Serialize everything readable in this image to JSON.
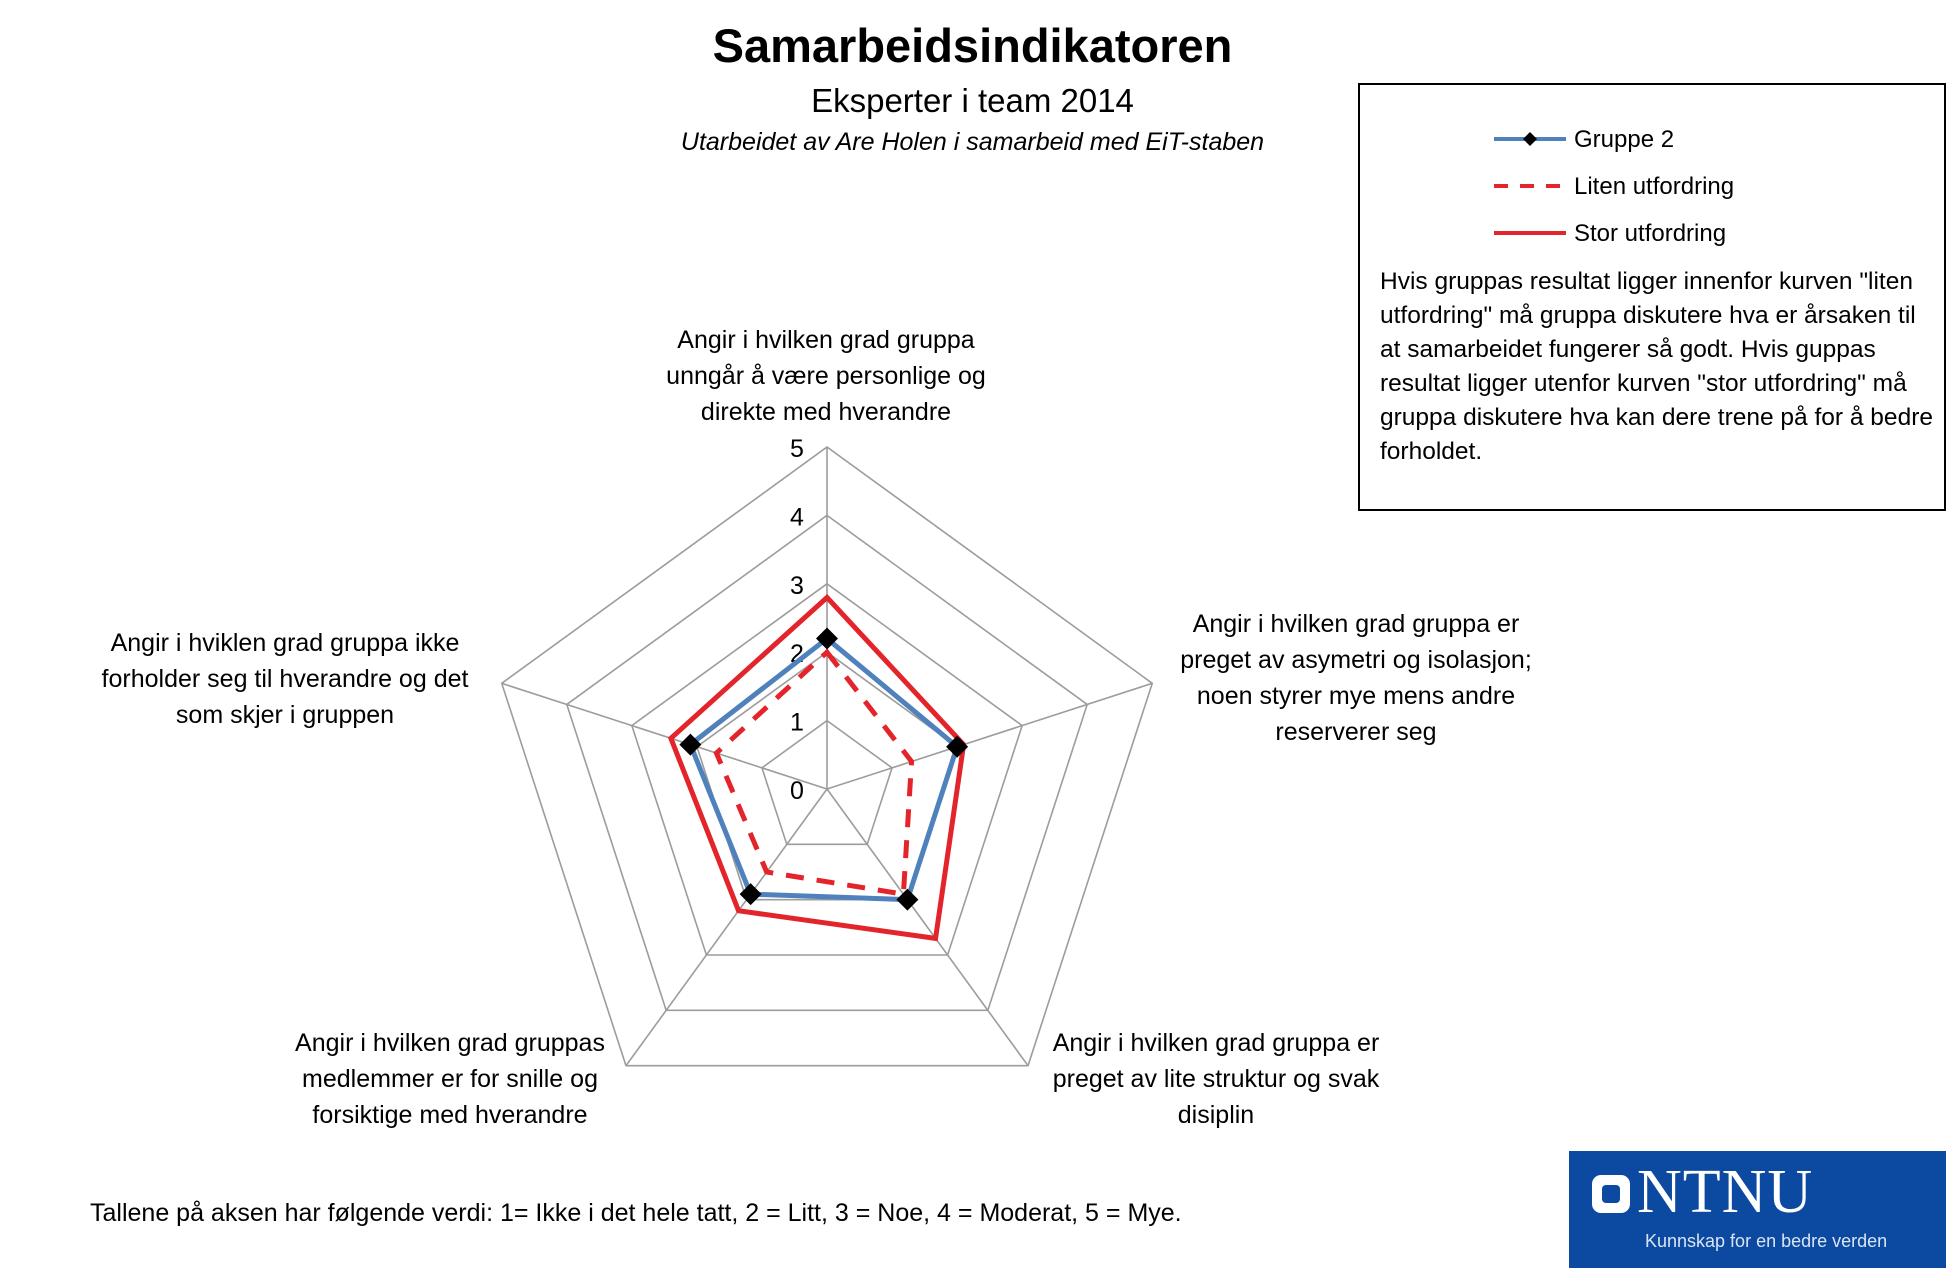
{
  "chart_data": {
    "type": "radar",
    "title": "Samarbeidsindikatoren",
    "subtitle": "Eksperter i team 2014",
    "credit": "Utarbeidet av Are Holen i samarbeid med EiT-staben",
    "axes": [
      "Angir i hvilken grad gruppa unngår å være personlige og direkte med hverandre",
      "Angir i hvilken grad gruppa er preget av asymetri og isolasjon; noen styrer mye mens andre reserverer seg",
      "Angir i hvilken grad gruppa er preget av lite struktur og svak disiplin",
      "Angir i hvilken grad gruppas medlemmer er for snille og forsiktige med hverandre",
      "Angir i hviklen grad gruppa ikke forholder seg til hverandre og det som skjer i gruppen"
    ],
    "axis_label_lines": [
      [
        "Angir i hvilken grad gruppa",
        "unngår å være personlige og",
        "direkte med hverandre"
      ],
      [
        "Angir i hvilken grad gruppa er",
        "preget av asymetri og isolasjon;",
        "noen styrer mye mens andre",
        "reserverer seg"
      ],
      [
        "Angir i hvilken grad gruppa er",
        "preget av lite struktur og svak",
        "disiplin"
      ],
      [
        "Angir i hvilken grad gruppas",
        "medlemmer er for snille og",
        "forsiktige med hverandre"
      ],
      [
        "Angir i hviklen grad gruppa ikke",
        "forholder seg til hverandre og det",
        "som skjer i gruppen"
      ]
    ],
    "scale_ticks": [
      "0",
      "1",
      "2",
      "3",
      "4",
      "5"
    ],
    "range": [
      0,
      5
    ],
    "series": [
      {
        "name": "Gruppe 2",
        "values": [
          2.2,
          2.0,
          2.0,
          1.9,
          2.1
        ],
        "color": "#4f81bd",
        "marker": "diamond",
        "dash": false
      },
      {
        "name": "Liten utfordring",
        "values": [
          2.0,
          1.3,
          1.9,
          1.5,
          1.7
        ],
        "color": "#e3242b",
        "dash": true
      },
      {
        "name": "Stor utfordring",
        "values": [
          2.8,
          2.1,
          2.7,
          2.2,
          2.4
        ],
        "color": "#e3242b",
        "dash": false
      }
    ],
    "legend_position": "top-right",
    "grid": true
  },
  "legend_note": "Hvis gruppas resultat ligger  innenfor kurven \"liten utfordring\" må gruppa diskutere hva er årsaken til at samarbeidet fungerer så godt. Hvis guppas resultat ligger utenfor kurven \"stor utfordring\" må gruppa diskutere hva kan dere  trene på for å bedre forholdet.",
  "footer": "Tallene på aksen har følgende verdi:  1= Ikke i det hele tatt, 2 = Litt, 3 = Noe,  4 = Moderat, 5 = Mye.",
  "logo": {
    "name": "NTNU",
    "tagline": "Kunnskap for en bedre verden",
    "color": "#0b4aa0"
  }
}
